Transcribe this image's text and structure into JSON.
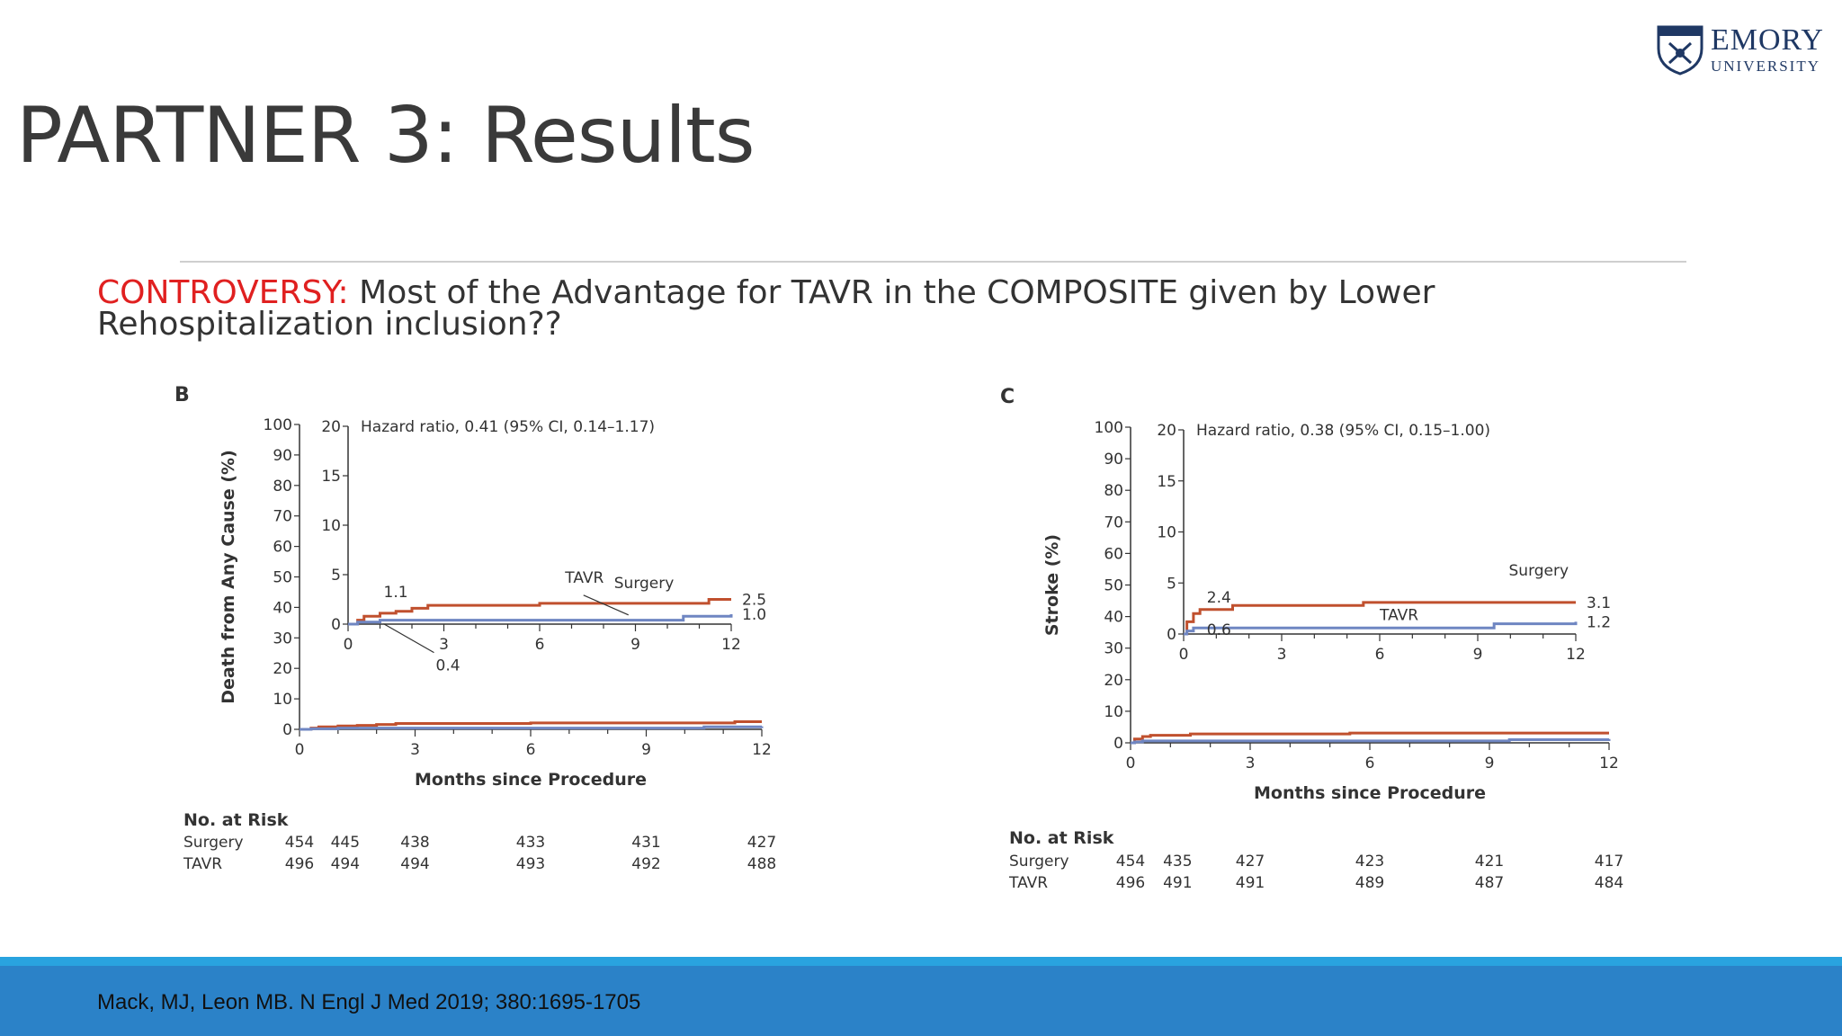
{
  "slide": {
    "title": "PARTNER 3: Results",
    "controversy_label": "CONTROVERSY:",
    "controversy_text": " Most of the Advantage for TAVR  in the COMPOSITE given by  Lower Rehospitalization inclusion??",
    "citation": "Mack, MJ, Leon MB. N Engl J Med 2019; 380:1695-1705"
  },
  "logo": {
    "name": "EMORY",
    "sub": "UNIVERSITY",
    "color": "#1f3864"
  },
  "colors": {
    "surgery": "#c0502e",
    "tavr": "#6f86c2",
    "band": "#2b82c8",
    "band_top": "#29a3df",
    "controversy": "#e02020"
  },
  "chart_data": [
    {
      "type": "line",
      "panel": "B",
      "ylabel": "Death from Any Cause (%)",
      "xlabel": "Months since Procedure",
      "xlim": [
        0,
        12
      ],
      "ylim": [
        0,
        100
      ],
      "xticks": [
        0,
        3,
        6,
        9,
        12
      ],
      "yticks": [
        0,
        10,
        20,
        30,
        40,
        50,
        60,
        70,
        80,
        90,
        100
      ],
      "inset": {
        "ylim": [
          0,
          20
        ],
        "yticks": [
          0,
          5,
          10,
          15,
          20
        ],
        "xticks": [
          0,
          3,
          6,
          9,
          12
        ],
        "hazard_ratio": "Hazard ratio, 0.41 (95% CI, 0.14–1.17)",
        "annotations": [
          {
            "text": "1.1",
            "x": 1.0,
            "y": 1.1
          },
          {
            "text": "0.4",
            "x": 1.0,
            "y": 0.4
          },
          {
            "text": "TAVR",
            "x": 7.5,
            "y": 0.9
          },
          {
            "text": "Surgery",
            "x": 8.5,
            "y": 2.2
          },
          {
            "text": "2.5",
            "x": 12,
            "y": 2.5
          },
          {
            "text": "1.0",
            "x": 12,
            "y": 1.0
          }
        ]
      },
      "series": [
        {
          "name": "Surgery",
          "x": [
            0,
            0.3,
            0.5,
            1.0,
            1.5,
            2.0,
            2.5,
            6.0,
            9.0,
            11.3,
            12.0
          ],
          "y": [
            0,
            0.4,
            0.8,
            1.1,
            1.3,
            1.6,
            1.9,
            2.1,
            2.1,
            2.5,
            2.5
          ]
        },
        {
          "name": "TAVR",
          "x": [
            0,
            0.3,
            1.0,
            2.0,
            9.8,
            10.5,
            12.0
          ],
          "y": [
            0,
            0.2,
            0.4,
            0.4,
            0.4,
            0.8,
            1.0
          ]
        }
      ],
      "risk_table": {
        "title": "No. at Risk",
        "months": [
          0,
          1,
          3,
          6,
          9,
          12
        ],
        "rows": [
          {
            "label": "Surgery",
            "values": [
              "454",
              "445",
              "438",
              "433",
              "431",
              "427"
            ]
          },
          {
            "label": "TAVR",
            "values": [
              "496",
              "494",
              "494",
              "493",
              "492",
              "488"
            ]
          }
        ]
      }
    },
    {
      "type": "line",
      "panel": "C",
      "ylabel": "Stroke (%)",
      "xlabel": "Months since Procedure",
      "xlim": [
        0,
        12
      ],
      "ylim": [
        0,
        100
      ],
      "xticks": [
        0,
        3,
        6,
        9,
        12
      ],
      "yticks": [
        0,
        10,
        20,
        30,
        40,
        50,
        60,
        70,
        80,
        90,
        100
      ],
      "inset": {
        "ylim": [
          0,
          20
        ],
        "yticks": [
          0,
          5,
          10,
          15,
          20
        ],
        "xticks": [
          0,
          3,
          6,
          9,
          12
        ],
        "hazard_ratio": "Hazard ratio, 0.38 (95% CI, 0.15–1.00)",
        "annotations": [
          {
            "text": "2.4",
            "x": 0.6,
            "y": 2.4
          },
          {
            "text": "0.6",
            "x": 0.6,
            "y": 0.6
          },
          {
            "text": "TAVR",
            "x": 6.0,
            "y": 1.0
          },
          {
            "text": "Surgery",
            "x": 10.5,
            "y": 4.5
          },
          {
            "text": "3.1",
            "x": 12,
            "y": 3.1
          },
          {
            "text": "1.2",
            "x": 12,
            "y": 1.2
          }
        ]
      },
      "series": [
        {
          "name": "Surgery",
          "x": [
            0,
            0.1,
            0.3,
            0.5,
            1.0,
            1.5,
            5.5,
            12.0
          ],
          "y": [
            0,
            1.2,
            2.0,
            2.4,
            2.4,
            2.8,
            3.1,
            3.1
          ]
        },
        {
          "name": "TAVR",
          "x": [
            0,
            0.1,
            0.3,
            8.0,
            9.5,
            12.0
          ],
          "y": [
            0,
            0.3,
            0.6,
            0.6,
            1.0,
            1.2
          ]
        }
      ],
      "risk_table": {
        "title": "No. at Risk",
        "months": [
          0,
          1,
          3,
          6,
          9,
          12
        ],
        "rows": [
          {
            "label": "Surgery",
            "values": [
              "454",
              "435",
              "427",
              "423",
              "421",
              "417"
            ]
          },
          {
            "label": "TAVR",
            "values": [
              "496",
              "491",
              "491",
              "489",
              "487",
              "484"
            ]
          }
        ]
      }
    }
  ]
}
